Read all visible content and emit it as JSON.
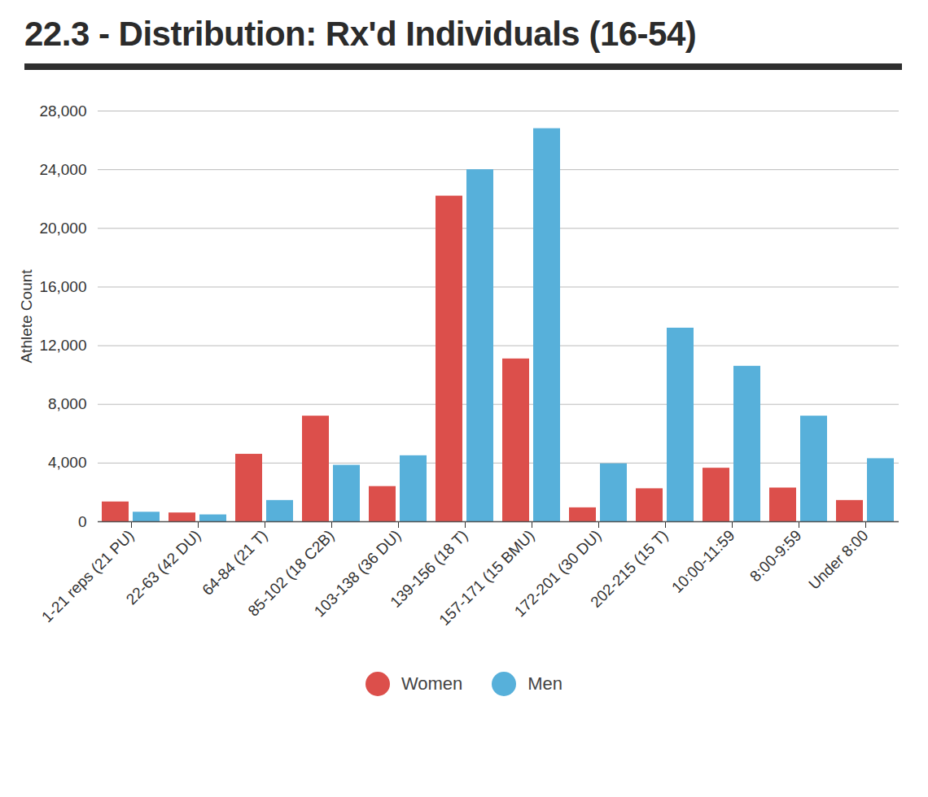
{
  "chart_data": {
    "type": "bar",
    "title": "22.3 - Distribution: Rx'd Individuals (16-54)",
    "y_label": "Athlete Count",
    "categories": [
      "1-21 reps (21 PU)",
      "22-63 (42 DU)",
      "64-84 (21 T)",
      "85-102 (18 C2B)",
      "103-138 (36 DU)",
      "139-156 (18 T)",
      "157-171 (15 BMU)",
      "172-201 (30 DU)",
      "202-215 (15 T)",
      "10:00-11:59",
      "8:00-9:59",
      "Under 8:00"
    ],
    "series": [
      {
        "name": "Women",
        "color": "#dc4f4b",
        "values": [
          1350,
          600,
          4600,
          7200,
          2400,
          22200,
          11100,
          950,
          2250,
          3650,
          2300,
          1450
        ]
      },
      {
        "name": "Men",
        "color": "#57b0da",
        "values": [
          650,
          470,
          1450,
          3850,
          4500,
          24000,
          26800,
          3950,
          13200,
          10600,
          7200,
          4300
        ]
      }
    ],
    "ylim": [
      0,
      28000
    ],
    "yticks": [
      0,
      {
        "value": 4000,
        "label": "4,000"
      },
      {
        "value": 8000,
        "label": "8,000"
      },
      {
        "value": 12000,
        "label": "12,000"
      },
      {
        "value": 16000,
        "label": "16,000"
      },
      {
        "value": 20000,
        "label": "20,000"
      },
      {
        "value": 24000,
        "label": "24,000"
      },
      {
        "value": 28000,
        "label": "28,000"
      }
    ],
    "grid": true,
    "legend": "bottom"
  }
}
